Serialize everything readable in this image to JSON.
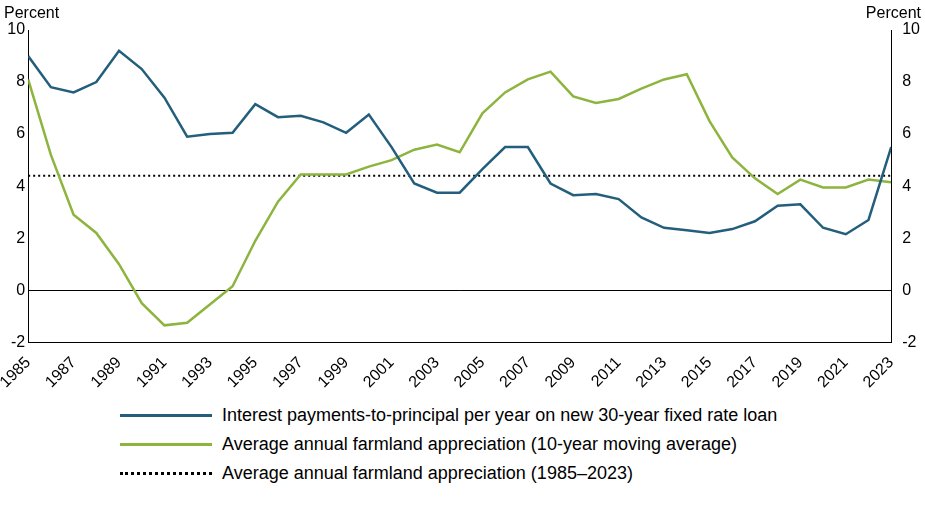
{
  "chart_data": {
    "type": "line",
    "y_label": "Percent",
    "y2_label": "Percent",
    "x": [
      1985,
      1986,
      1987,
      1988,
      1989,
      1990,
      1991,
      1992,
      1993,
      1994,
      1995,
      1996,
      1997,
      1998,
      1999,
      2000,
      2001,
      2002,
      2003,
      2004,
      2005,
      2006,
      2007,
      2008,
      2009,
      2010,
      2011,
      2012,
      2013,
      2014,
      2015,
      2016,
      2017,
      2018,
      2019,
      2020,
      2021,
      2022,
      2023
    ],
    "xlim": [
      1985,
      2023
    ],
    "xticks": [
      1985,
      1987,
      1989,
      1991,
      1993,
      1995,
      1997,
      1999,
      2001,
      2003,
      2005,
      2007,
      2009,
      2011,
      2013,
      2015,
      2017,
      2019,
      2021,
      2023
    ],
    "ylim": [
      -2,
      10
    ],
    "yticks": [
      -2,
      0,
      2,
      4,
      6,
      8,
      10
    ],
    "y2lim": [
      -2,
      10
    ],
    "y2ticks": [
      -2,
      0,
      2,
      4,
      6,
      8,
      10
    ],
    "grid": false,
    "legend": "bottom",
    "series": [
      {
        "name": "Interest payments-to-principal per year on new 30-year fixed rate loan",
        "color": "#235e7c",
        "line_style": "solid",
        "values": [
          9.0,
          7.8,
          7.6,
          8.0,
          9.2,
          8.5,
          7.4,
          5.9,
          6.0,
          6.05,
          7.15,
          6.65,
          6.7,
          6.45,
          6.05,
          6.75,
          5.5,
          4.1,
          3.75,
          3.75,
          4.65,
          5.5,
          5.5,
          4.1,
          3.65,
          3.7,
          3.5,
          2.8,
          2.4,
          2.3,
          2.2,
          2.35,
          2.65,
          3.25,
          3.3,
          2.4,
          2.15,
          2.7,
          5.5
        ]
      },
      {
        "name": "Average annual farmland appreciation (10-year moving average)",
        "color": "#8db43e",
        "line_style": "solid",
        "values": [
          8.1,
          5.2,
          2.9,
          2.2,
          1.0,
          -0.5,
          -1.35,
          -1.25,
          -0.55,
          0.15,
          1.9,
          3.4,
          4.45,
          4.45,
          4.45,
          4.75,
          5.0,
          5.4,
          5.6,
          5.3,
          6.8,
          7.6,
          8.1,
          8.4,
          7.45,
          7.2,
          7.35,
          7.75,
          8.1,
          8.3,
          6.5,
          5.1,
          4.3,
          3.7,
          4.25,
          3.95,
          3.95,
          4.25,
          4.15
        ]
      },
      {
        "name": "Average annual farmland appreciation (1985–2023)",
        "color": "#000000",
        "line_style": "dotted",
        "values": [
          4.4,
          4.4,
          4.4,
          4.4,
          4.4,
          4.4,
          4.4,
          4.4,
          4.4,
          4.4,
          4.4,
          4.4,
          4.4,
          4.4,
          4.4,
          4.4,
          4.4,
          4.4,
          4.4,
          4.4,
          4.4,
          4.4,
          4.4,
          4.4,
          4.4,
          4.4,
          4.4,
          4.4,
          4.4,
          4.4,
          4.4,
          4.4,
          4.4,
          4.4,
          4.4,
          4.4,
          4.4,
          4.4,
          4.4
        ]
      }
    ]
  }
}
